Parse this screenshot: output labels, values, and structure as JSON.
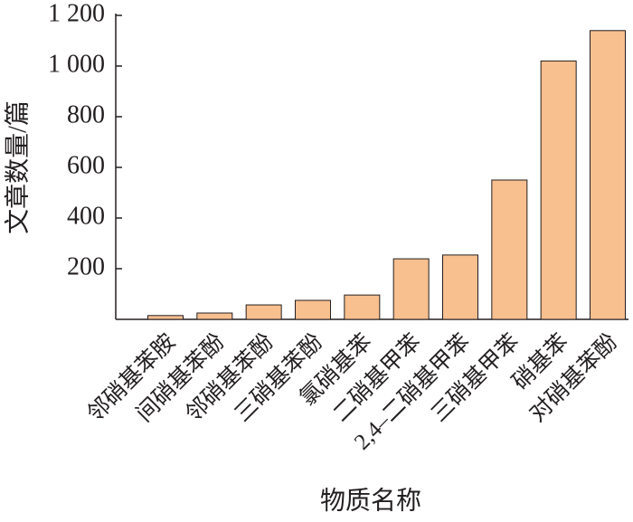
{
  "chart_data": {
    "type": "bar",
    "y_label": "文章数量/篇",
    "x_label": "物质名称",
    "categories": [
      "邻硝基苯胺",
      "间硝基苯酚",
      "邻硝基苯酚",
      "三硝基苯酚",
      "氯硝基苯",
      "二硝基甲苯",
      "2,4–二硝基甲苯",
      "三硝基甲苯",
      "硝基苯",
      "对硝基苯酚"
    ],
    "values": [
      15,
      25,
      57,
      75,
      96,
      239,
      254,
      550,
      1020,
      1140
    ],
    "color": "#f8bf8f",
    "ylim": [
      0,
      1200
    ],
    "yticks": [
      200,
      400,
      600,
      800,
      {
        "value": 1000,
        "label": "1 000"
      },
      {
        "value": 1200,
        "label": "1 200"
      }
    ],
    "grid": false
  }
}
